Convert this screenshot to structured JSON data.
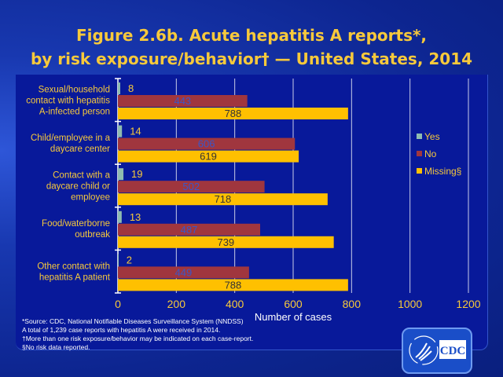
{
  "title": {
    "line1": "Figure 2.6b. Acute hepatitis A reports*,",
    "line2": "by risk exposure/behavior† — United States, 2014"
  },
  "chart_data": {
    "type": "bar",
    "orientation": "horizontal",
    "title": "Figure 2.6b. Acute hepatitis A reports*, by risk exposure/behavior† — United States, 2014",
    "categories": [
      [
        "Sexual/household",
        "contact with hepatitis",
        "A-infected person"
      ],
      [
        "Child/employee in a",
        "daycare center"
      ],
      [
        "Contact with a",
        "daycare child or",
        "employee"
      ],
      [
        "Food/waterborne",
        "outbreak"
      ],
      [
        "Other contact with",
        "hepatitis A patient"
      ]
    ],
    "series": [
      {
        "name": "Yes",
        "color": "#8fbcb0",
        "values": [
          8,
          14,
          19,
          13,
          2
        ]
      },
      {
        "name": "No",
        "color": "#a0363e",
        "values": [
          443,
          606,
          502,
          487,
          449
        ]
      },
      {
        "name": "Missing§",
        "color": "#ffc000",
        "values": [
          788,
          619,
          718,
          739,
          788
        ]
      }
    ],
    "xlabel": "Number of cases",
    "ylabel": "",
    "xlim": [
      0,
      1200
    ],
    "xticks": [
      "0",
      "200",
      "400",
      "600",
      "800",
      "1000",
      "1200"
    ],
    "grid": true,
    "legend": "right"
  },
  "footnotes": [
    "*Source: CDC, National Notifiable Diseases Surveillance System (NNDSS)",
    "A total of 1,239 case reports with hepatitis A were received in 2014.",
    "†More than one risk exposure/behavior may be indicated on each case-report.",
    "§No risk data reported."
  ],
  "logo": {
    "text": "CDC"
  }
}
